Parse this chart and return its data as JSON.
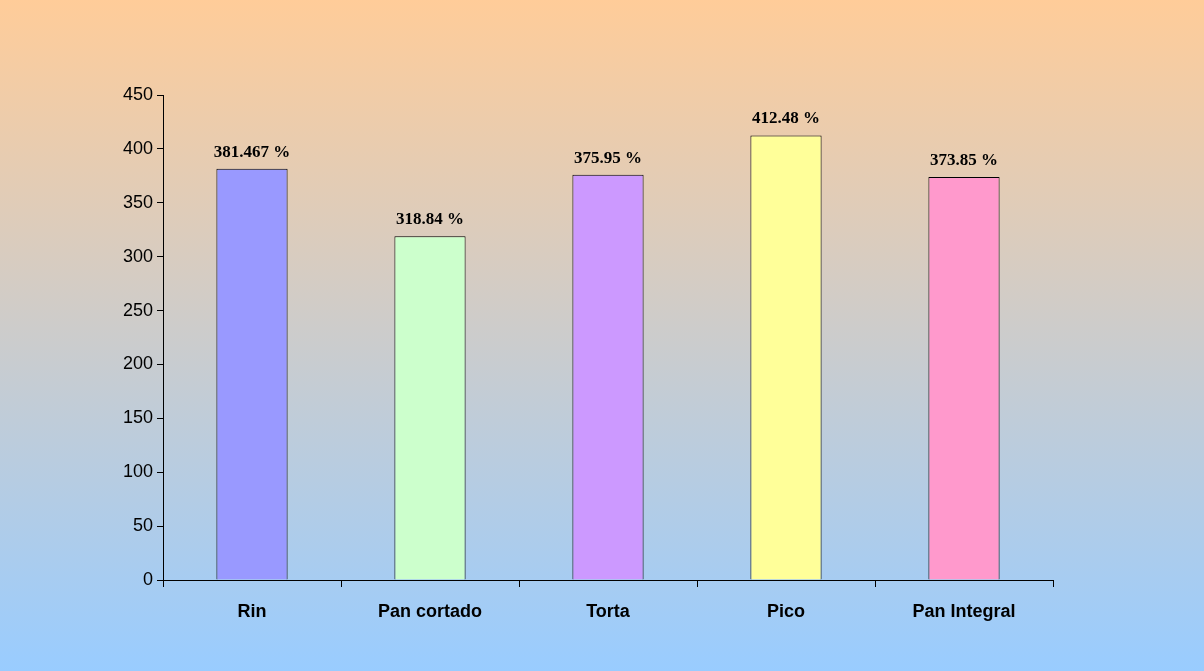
{
  "chart_data": {
    "type": "bar",
    "categories": [
      "Rin",
      "Pan cortado",
      "Torta",
      "Pico",
      "Pan Integral"
    ],
    "values": [
      381.467,
      318.84,
      375.95,
      412.48,
      373.85
    ],
    "colors": [
      "#9999ff",
      "#ccffcc",
      "#cc99ff",
      "#ffff99",
      "#ff99cc"
    ],
    "value_labels": [
      "381.467 %",
      "318.84 %",
      "375.95 %",
      "412.48 %",
      "373.85 %"
    ],
    "ylim": [
      0,
      450
    ],
    "yticks": [
      0,
      50,
      100,
      150,
      200,
      250,
      300,
      350,
      400,
      450
    ],
    "grid": false,
    "legend": false
  }
}
